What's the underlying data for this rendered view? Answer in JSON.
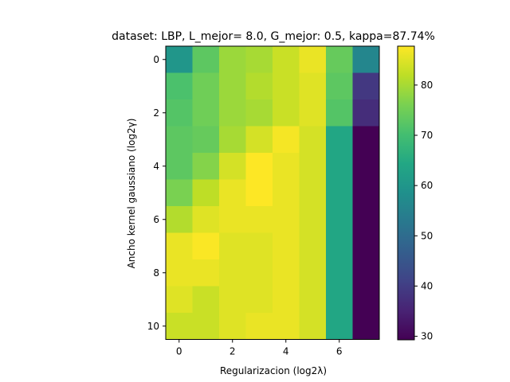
{
  "chart_data": {
    "type": "heatmap",
    "title": "dataset: LBP, L_mejor= 8.0, G_mejor: 0.5, kappa=87.74%",
    "xlabel": "Regularizacion  (log2λ)",
    "ylabel": "Ancho kernel gaussiano (log2γ)",
    "x_ticks": [
      0,
      2,
      4,
      6
    ],
    "y_ticks": [
      0,
      2,
      4,
      6,
      8,
      10
    ],
    "colorbar_ticks": [
      30,
      40,
      50,
      60,
      70,
      80
    ],
    "colormap": "viridis",
    "vmin": 29.3,
    "vmax": 87.74,
    "values": [
      [
        60,
        73,
        79,
        80,
        83,
        86,
        74,
        56
      ],
      [
        71,
        75,
        79,
        81,
        83,
        85,
        73,
        39
      ],
      [
        72,
        75,
        79,
        80,
        83,
        85,
        72,
        37
      ],
      [
        73,
        74,
        80,
        84,
        87,
        84,
        64,
        29.3
      ],
      [
        73,
        77,
        84,
        87.7,
        86,
        84,
        64,
        29.3
      ],
      [
        76,
        82,
        86,
        87.7,
        86,
        84,
        64,
        29.3
      ],
      [
        81,
        85,
        86,
        86,
        86,
        84,
        64,
        29.3
      ],
      [
        86,
        87.5,
        85,
        85,
        86,
        84,
        64,
        29.3
      ],
      [
        86,
        86,
        85,
        85,
        86,
        84,
        64,
        29.3
      ],
      [
        85,
        83,
        85,
        85,
        86,
        84,
        64,
        29.3
      ],
      [
        83,
        83,
        85,
        86,
        86,
        84,
        64,
        29.3
      ]
    ]
  }
}
